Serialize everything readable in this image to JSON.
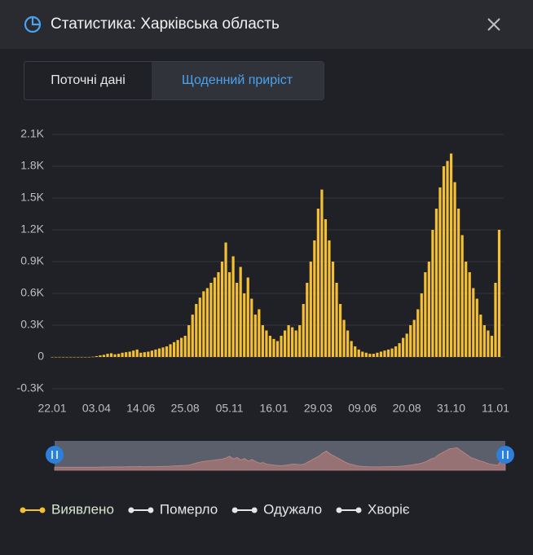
{
  "header": {
    "title": "Статистика: Харківська область"
  },
  "tabs": [
    "Поточні дані",
    "Щоденний приріст"
  ],
  "active_tab": 1,
  "chart_data": {
    "type": "bar",
    "categories": [
      "22.01",
      null,
      null,
      null,
      null,
      null,
      null,
      null,
      null,
      null,
      null,
      null,
      "03.04",
      null,
      null,
      null,
      null,
      null,
      null,
      null,
      null,
      null,
      null,
      null,
      "14.06",
      null,
      null,
      null,
      null,
      null,
      null,
      null,
      null,
      null,
      null,
      null,
      "25.08",
      null,
      null,
      null,
      null,
      null,
      null,
      null,
      null,
      null,
      null,
      null,
      "05.11",
      null,
      null,
      null,
      null,
      null,
      null,
      null,
      null,
      null,
      null,
      null,
      "16.01",
      null,
      null,
      null,
      null,
      null,
      null,
      null,
      null,
      null,
      null,
      null,
      "29.03",
      null,
      null,
      null,
      null,
      null,
      null,
      null,
      null,
      null,
      null,
      null,
      "09.06",
      null,
      null,
      null,
      null,
      null,
      null,
      null,
      null,
      null,
      null,
      null,
      "20.08",
      null,
      null,
      null,
      null,
      null,
      null,
      null,
      null,
      null,
      null,
      null,
      "31.10",
      null,
      null,
      null,
      null,
      null,
      null,
      null,
      null,
      null,
      null,
      null,
      "11.01",
      null
    ],
    "series": [
      {
        "name": "Виявлено",
        "color": "#f5bf32",
        "values": [
          0,
          0,
          0,
          0,
          0,
          0,
          0,
          0,
          0,
          0,
          0,
          2,
          8,
          15,
          20,
          30,
          35,
          25,
          30,
          40,
          45,
          50,
          60,
          70,
          40,
          45,
          50,
          60,
          70,
          80,
          90,
          100,
          120,
          140,
          160,
          180,
          200,
          300,
          400,
          500,
          560,
          620,
          650,
          700,
          750,
          800,
          900,
          1080,
          800,
          950,
          700,
          850,
          600,
          750,
          550,
          400,
          450,
          300,
          250,
          200,
          170,
          150,
          200,
          250,
          300,
          280,
          250,
          300,
          500,
          700,
          900,
          1100,
          1400,
          1580,
          1300,
          1100,
          900,
          700,
          500,
          350,
          250,
          150,
          100,
          70,
          50,
          40,
          30,
          30,
          40,
          50,
          60,
          70,
          80,
          100,
          130,
          180,
          220,
          300,
          350,
          450,
          600,
          800,
          900,
          1200,
          1400,
          1600,
          1800,
          1850,
          1920,
          1650,
          1400,
          1150,
          900,
          800,
          650,
          550,
          400,
          300,
          250,
          200,
          700,
          1200
        ]
      }
    ],
    "other_legend_entries": [
      {
        "name": "Померло",
        "color": "#e6e6e6"
      },
      {
        "name": "Одужало",
        "color": "#e6e6e6"
      },
      {
        "name": "Хворіє",
        "color": "#e6e6e6"
      }
    ],
    "ylim": [
      -300,
      2100
    ],
    "yticks": [
      {
        "value": -300,
        "label": "-0.3K"
      },
      0,
      {
        "value": 300,
        "label": "0.3K"
      },
      {
        "value": 600,
        "label": "0.6K"
      },
      {
        "value": 900,
        "label": "0.9K"
      },
      {
        "value": 1200,
        "label": "1.2K"
      },
      {
        "value": 1500,
        "label": "1.5K"
      },
      {
        "value": 1800,
        "label": "1.8K"
      },
      {
        "value": 2100,
        "label": "2.1K"
      }
    ],
    "grid": true
  }
}
